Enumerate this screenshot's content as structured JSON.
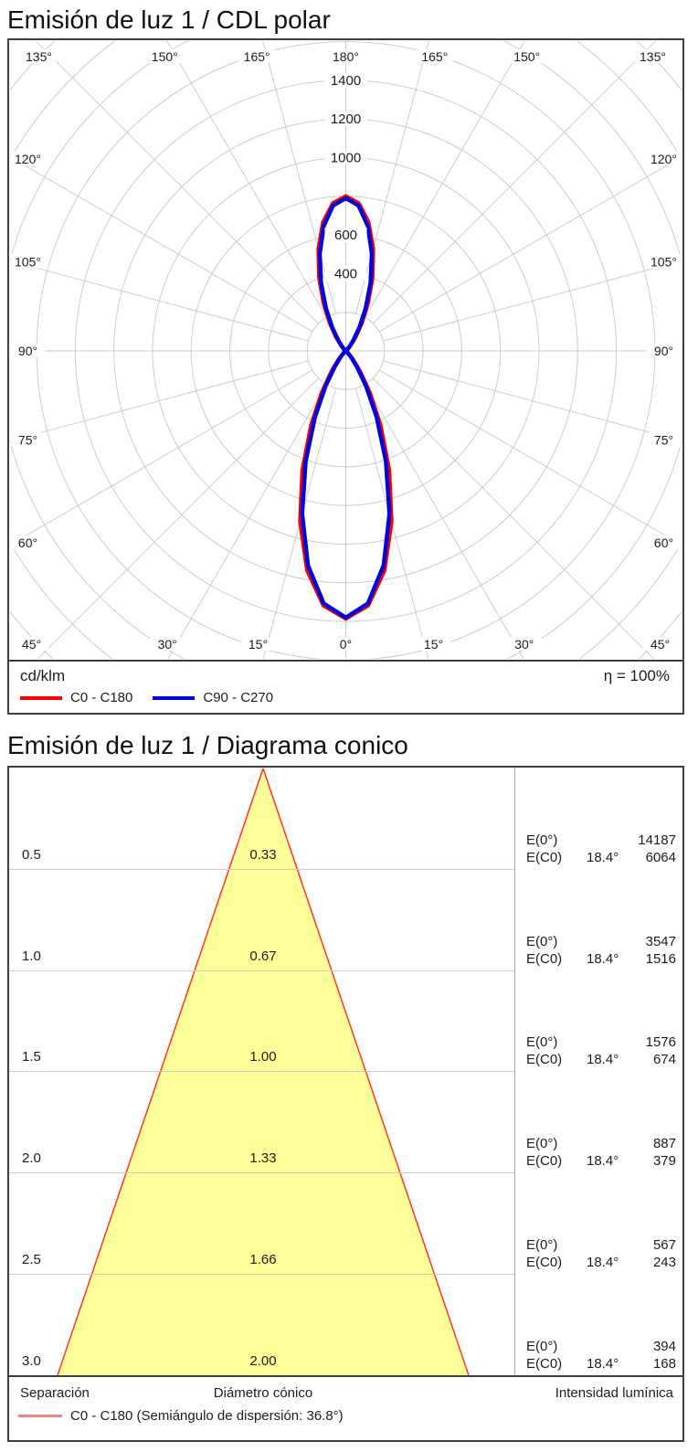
{
  "polar_section": {
    "title": "Emisión de luz 1 / CDL polar",
    "unit_label": "cd/klm",
    "efficiency_label": "η = 100%"
  },
  "cone_section": {
    "title": "Emisión de luz 1 / Diagrama conico",
    "footer": {
      "separation_label": "Separación",
      "diameter_label": "Diámetro cónico",
      "intensity_label": "Intensidad lumínica",
      "legend_label": "C0 - C180 (Semiángulo de dispersión: 36.8°)",
      "legend_color": "#f08080"
    }
  },
  "chart_data": [
    {
      "type": "line",
      "subtype": "polar-intensity-curve",
      "title": "Emisión de luz 1 / CDL polar",
      "unit": "cd/klm",
      "efficiency": "η = 100%",
      "grid": true,
      "ring_step": 200,
      "ring_max_labeled": 1400,
      "ring_labels": [
        400,
        600,
        1000,
        1200,
        1400
      ],
      "angle_step_deg": 15,
      "angle_labels_deg": [
        0,
        15,
        30,
        45,
        60,
        75,
        90,
        105,
        120,
        135,
        150,
        165,
        180
      ],
      "gamma_deg": [
        0,
        5,
        10,
        15,
        20,
        25,
        30,
        35,
        40,
        45,
        50,
        55,
        60,
        65,
        70,
        75,
        80,
        85,
        90,
        95,
        100,
        105,
        110,
        115,
        120,
        125,
        130,
        135,
        140,
        145,
        150,
        155,
        160,
        165,
        170,
        175,
        180
      ],
      "series": [
        {
          "name": "C0 - C180",
          "color": "#ff0000",
          "values": [
            1385,
            1323,
            1153,
            914,
            657,
            425,
            247,
            126,
            57,
            22,
            7,
            2,
            0,
            0,
            0,
            0,
            0,
            0,
            0,
            0,
            0,
            0,
            0,
            0,
            0,
            1,
            6,
            18,
            43,
            89,
            165,
            271,
            404,
            547,
            676,
            767,
            800
          ]
        },
        {
          "name": "C90 - C270",
          "color": "#0000dd",
          "values": [
            1380,
            1312,
            1127,
            873,
            607,
            377,
            207,
            99,
            41,
            14,
            4,
            1,
            0,
            0,
            0,
            0,
            0,
            0,
            0,
            0,
            0,
            0,
            0,
            0,
            0,
            1,
            4,
            12,
            32,
            72,
            141,
            243,
            375,
            521,
            657,
            755,
            790
          ]
        }
      ]
    },
    {
      "type": "area",
      "subtype": "cone-diagram",
      "title": "Emisión de luz 1 / Diagrama conico",
      "beam_half_angle_deg": 18.4,
      "beam_full_angle_deg": 36.8,
      "fill_color": "#ffff99",
      "edge_color": "#ff3326",
      "e0_label": "E(0°)",
      "ec0_label": "E(C0)",
      "angle_col": "18.4°",
      "rows": [
        {
          "separation": "0.5",
          "diameter": "0.33",
          "E0": "14187",
          "EC0": "6064"
        },
        {
          "separation": "1.0",
          "diameter": "0.67",
          "E0": "3547",
          "EC0": "1516"
        },
        {
          "separation": "1.5",
          "diameter": "1.00",
          "E0": "1576",
          "EC0": "674"
        },
        {
          "separation": "2.0",
          "diameter": "1.33",
          "E0": "887",
          "EC0": "379"
        },
        {
          "separation": "2.5",
          "diameter": "1.66",
          "E0": "567",
          "EC0": "243"
        },
        {
          "separation": "3.0",
          "diameter": "2.00",
          "E0": "394",
          "EC0": "168"
        }
      ]
    }
  ]
}
